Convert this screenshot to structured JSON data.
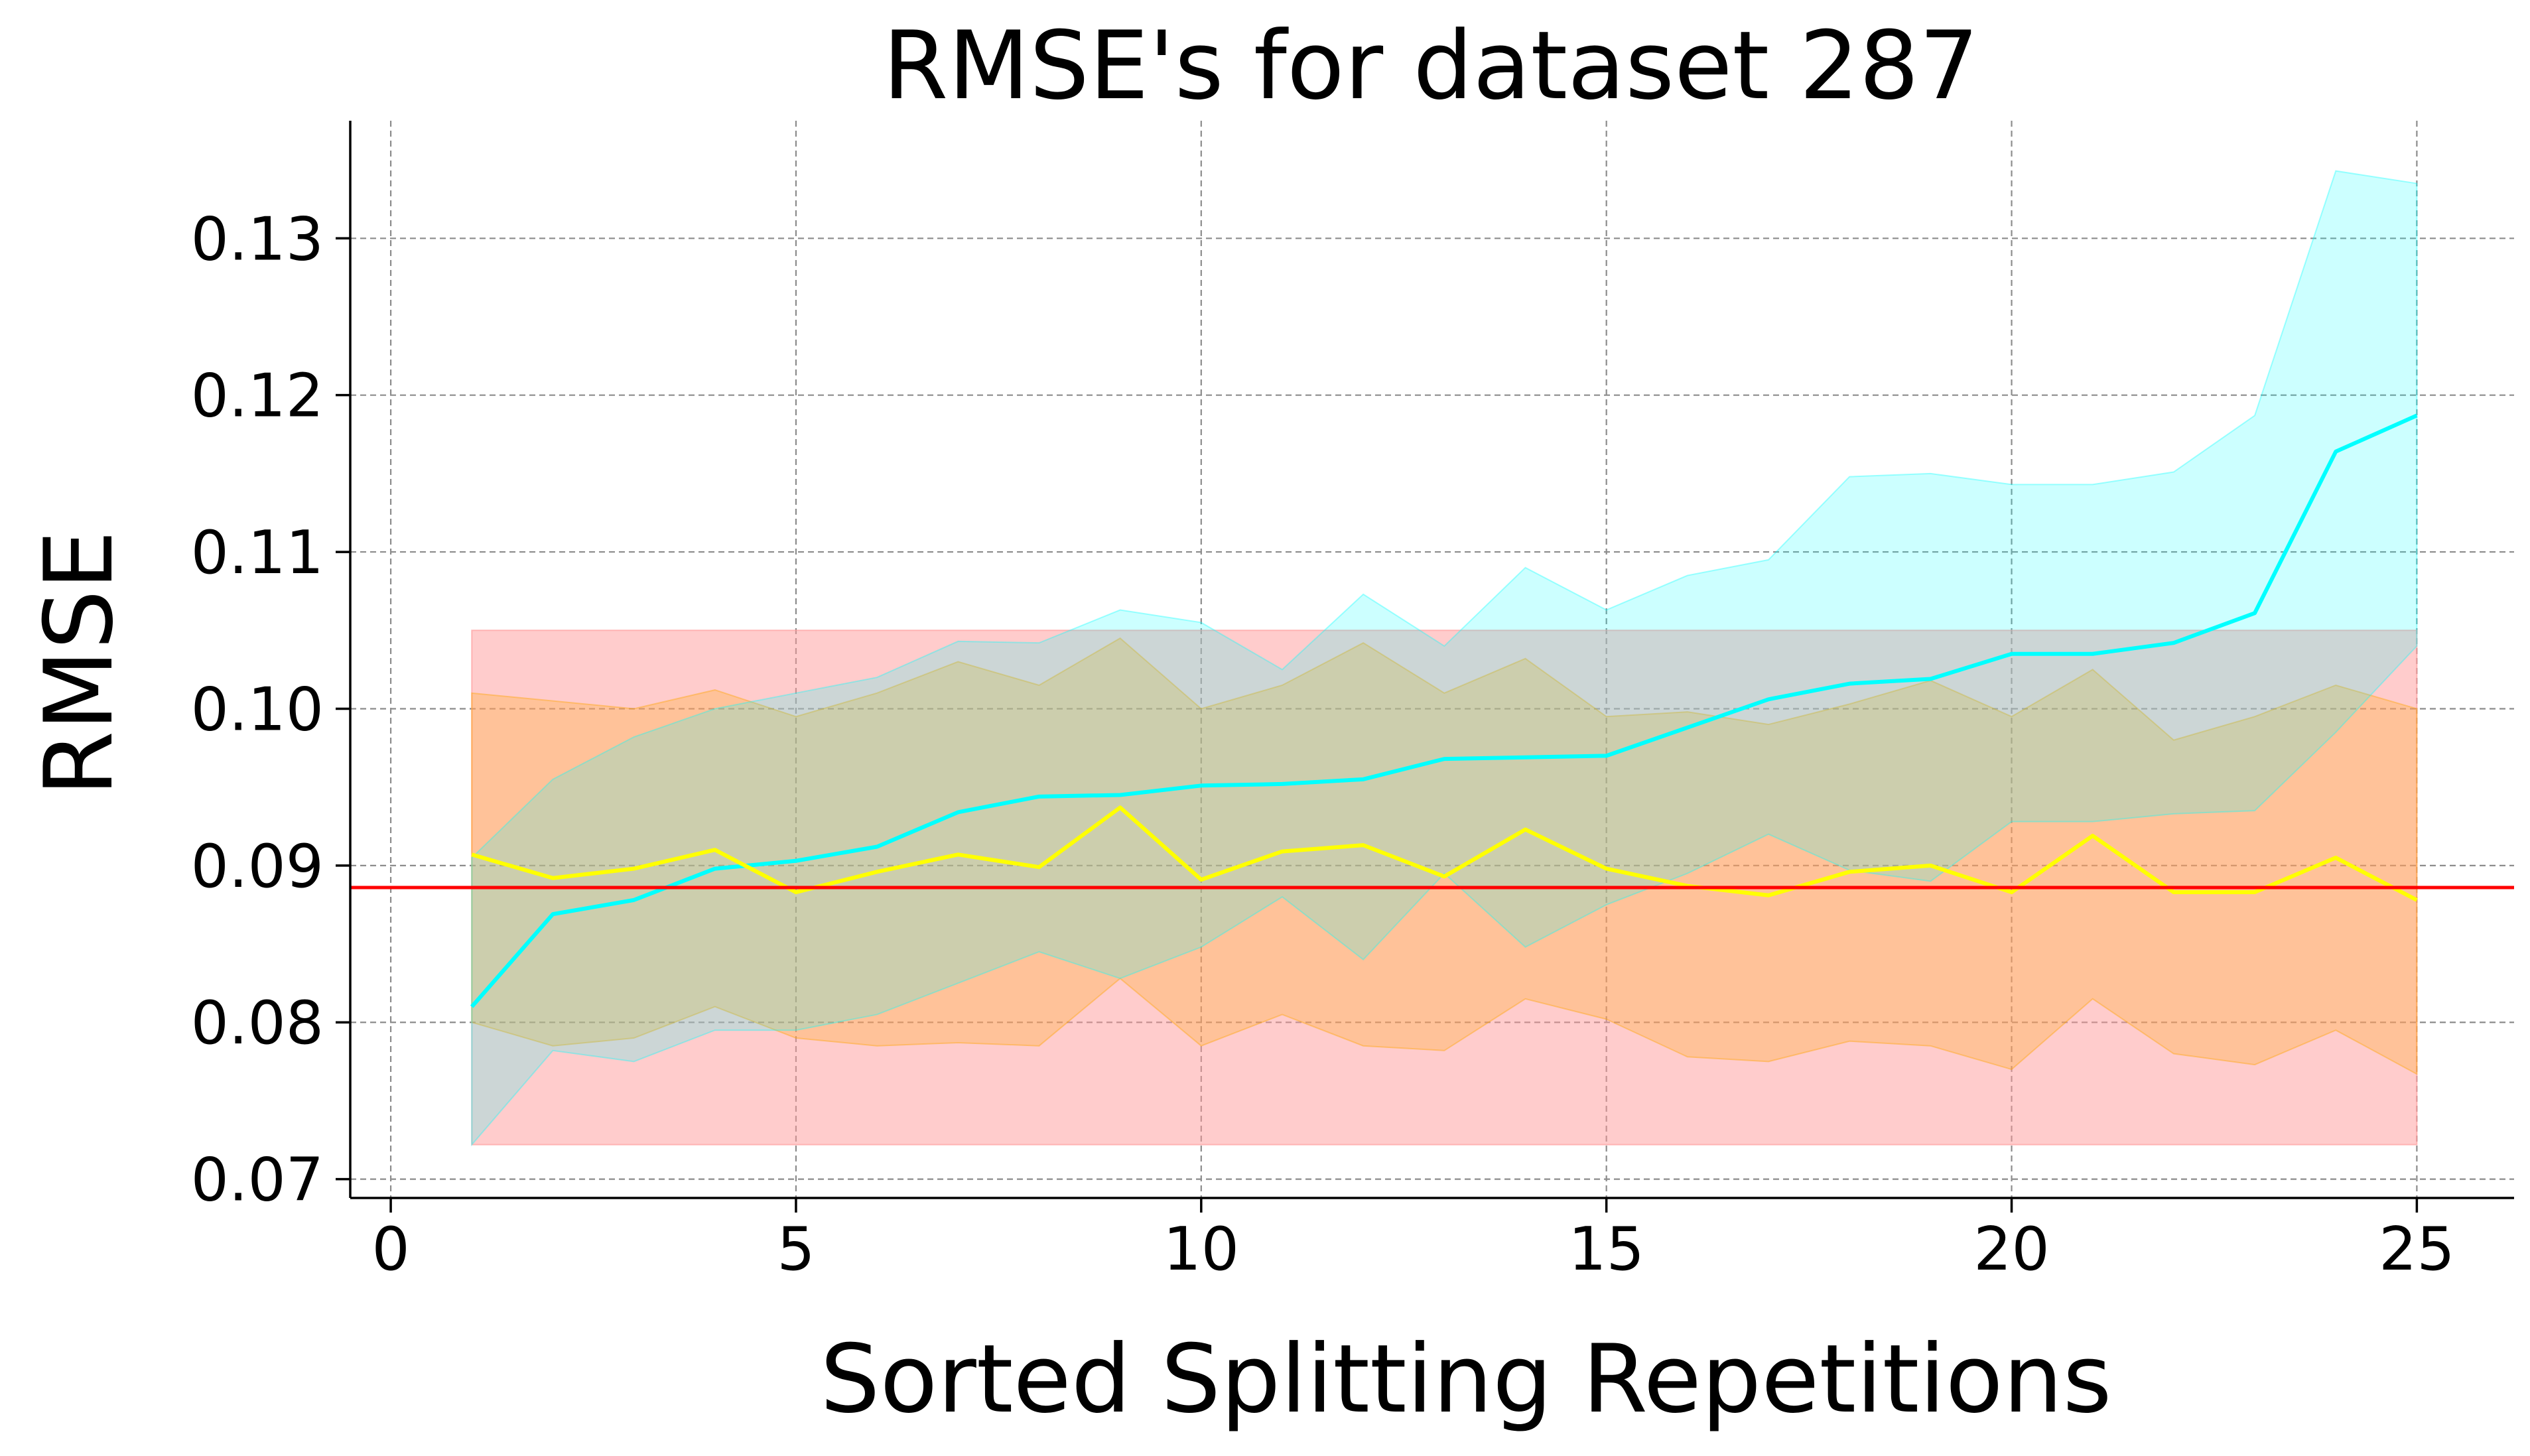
{
  "chart_data": {
    "type": "line",
    "title": "RMSE's for dataset 287",
    "xlabel": "Sorted Splitting Repetitions",
    "ylabel": "RMSE",
    "xlim": [
      -0.5,
      26.2
    ],
    "ylim": [
      0.0688,
      0.1375
    ],
    "xticks": [
      0,
      5,
      10,
      15,
      20,
      25
    ],
    "yticks": [
      0.07,
      0.08,
      0.09,
      0.1,
      0.11,
      0.12,
      0.13
    ],
    "ytick_labels": [
      "0.07",
      "0.08",
      "0.09",
      "0.10",
      "0.11",
      "0.12",
      "0.13"
    ],
    "grid": true,
    "x": [
      1,
      2,
      3,
      4,
      5,
      6,
      7,
      8,
      9,
      10,
      11,
      12,
      13,
      14,
      15,
      16,
      17,
      18,
      19,
      20,
      21,
      22,
      23,
      24,
      25
    ],
    "reference_line": {
      "y": 0.0886,
      "color": "#ff0000"
    },
    "bands": [
      {
        "color": "#ff9999",
        "opacity": 0.5,
        "upper": [
          0.105,
          0.105,
          0.105,
          0.105,
          0.105,
          0.105,
          0.105,
          0.105,
          0.105,
          0.105,
          0.105,
          0.105,
          0.105,
          0.105,
          0.105,
          0.105,
          0.105,
          0.105,
          0.105,
          0.105,
          0.105,
          0.105,
          0.105,
          0.105,
          0.105
        ],
        "lower": [
          0.0722,
          0.0722,
          0.0722,
          0.0722,
          0.0722,
          0.0722,
          0.0722,
          0.0722,
          0.0722,
          0.0722,
          0.0722,
          0.0722,
          0.0722,
          0.0722,
          0.0722,
          0.0722,
          0.0722,
          0.0722,
          0.0722,
          0.0722,
          0.0722,
          0.0722,
          0.0722,
          0.0722,
          0.0722
        ]
      },
      {
        "color": "#ffa500",
        "opacity": 0.25,
        "upper": [
          0.101,
          0.1005,
          0.1,
          0.1012,
          0.0995,
          0.101,
          0.103,
          0.1015,
          0.1045,
          0.1,
          0.1015,
          0.1042,
          0.101,
          0.1032,
          0.0995,
          0.0998,
          0.099,
          0.1003,
          0.1018,
          0.0995,
          0.1025,
          0.098,
          0.0995,
          0.1015,
          0.1
        ],
        "lower": [
          0.08,
          0.0785,
          0.079,
          0.081,
          0.079,
          0.0785,
          0.0787,
          0.0785,
          0.0828,
          0.0785,
          0.0805,
          0.0785,
          0.0782,
          0.0815,
          0.0802,
          0.0778,
          0.0775,
          0.0788,
          0.0785,
          0.077,
          0.0815,
          0.078,
          0.0773,
          0.0795,
          0.0767
        ]
      },
      {
        "color": "#00ffff",
        "opacity": 0.2,
        "upper": [
          0.0905,
          0.0955,
          0.0982,
          0.1,
          0.101,
          0.102,
          0.1043,
          0.1042,
          0.1063,
          0.1055,
          0.1025,
          0.1073,
          0.104,
          0.109,
          0.1063,
          0.1085,
          0.1095,
          0.1148,
          0.115,
          0.1143,
          0.1143,
          0.1151,
          0.1187,
          0.1343,
          0.1335
        ],
        "lower": [
          0.0722,
          0.0782,
          0.0775,
          0.0795,
          0.0795,
          0.0805,
          0.0825,
          0.0845,
          0.0828,
          0.0848,
          0.088,
          0.084,
          0.0895,
          0.0848,
          0.0875,
          0.0895,
          0.092,
          0.0897,
          0.089,
          0.0928,
          0.0928,
          0.0933,
          0.0935,
          0.0985,
          0.104
        ]
      }
    ],
    "series": [
      {
        "color": "#00ffff",
        "values": [
          0.081,
          0.0869,
          0.0878,
          0.0898,
          0.0903,
          0.0912,
          0.0934,
          0.0944,
          0.0945,
          0.0951,
          0.0952,
          0.0955,
          0.0968,
          0.0969,
          0.097,
          0.0988,
          0.1006,
          0.1016,
          0.1019,
          0.1035,
          0.1035,
          0.1042,
          0.1061,
          0.1164,
          0.1187
        ]
      },
      {
        "color": "#ffff00",
        "values": [
          0.0907,
          0.0892,
          0.0898,
          0.091,
          0.0883,
          0.0896,
          0.0907,
          0.0899,
          0.0937,
          0.0891,
          0.0909,
          0.0913,
          0.0893,
          0.0923,
          0.0898,
          0.0887,
          0.0881,
          0.0896,
          0.09,
          0.0883,
          0.0919,
          0.0883,
          0.0883,
          0.0905,
          0.0878
        ]
      }
    ]
  }
}
